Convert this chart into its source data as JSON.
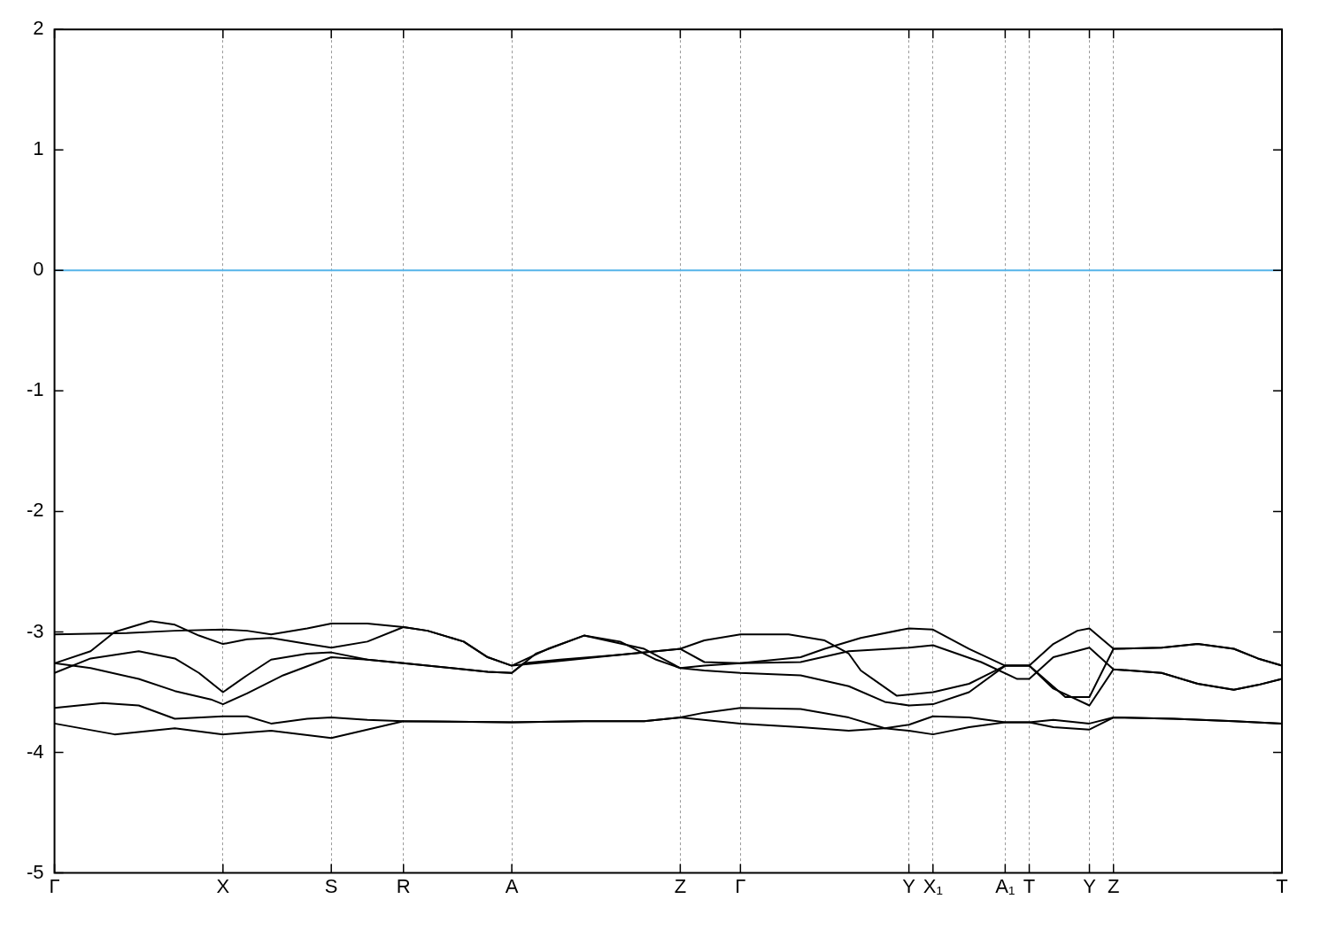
{
  "chart_data": {
    "type": "line",
    "grid": "x",
    "legend": false,
    "marker": "none",
    "categories": [
      "Γ",
      null,
      null,
      null,
      null,
      null,
      null,
      null,
      null,
      null,
      null,
      null,
      null,
      null,
      "X",
      null,
      null,
      null,
      null,
      null,
      null,
      null,
      null,
      "S",
      null,
      null,
      null,
      null,
      null,
      "R",
      null,
      null,
      null,
      null,
      null,
      null,
      null,
      null,
      "A",
      null,
      null,
      null,
      null,
      null,
      null,
      null,
      null,
      null,
      null,
      null,
      null,
      null,
      "Z",
      null,
      null,
      null,
      null,
      "Γ",
      null,
      null,
      null,
      null,
      null,
      null,
      null,
      null,
      null,
      null,
      null,
      null,
      null,
      "Y",
      null,
      "X₁",
      null,
      null,
      null,
      null,
      null,
      "A₁",
      null,
      "T",
      null,
      null,
      null,
      null,
      "Y",
      null,
      "Z",
      null,
      null,
      null,
      null,
      null,
      null,
      null,
      null,
      null,
      null,
      null,
      null,
      null,
      "T"
    ],
    "ylim": [
      -5,
      2
    ],
    "yticks": [
      -5,
      -4,
      -3,
      -2,
      -1,
      0,
      1,
      2
    ],
    "ref_lines": [
      {
        "axis": "y",
        "value": 0,
        "color": "#56b4e9"
      }
    ],
    "series": [
      {
        "color": "#000000",
        "values": [
          -3.02,
          null,
          null,
          null,
          null,
          null,
          -3.01,
          null,
          null,
          null,
          -2.99,
          null,
          null,
          null,
          -2.98,
          null,
          -2.99,
          null,
          -3.02,
          null,
          null,
          -2.97,
          null,
          -2.93,
          null,
          null,
          -2.93,
          null,
          null,
          -2.96,
          null,
          -2.99,
          null,
          null,
          -3.08,
          null,
          -3.21,
          null,
          -3.28,
          null,
          null,
          null,
          -3.24,
          null,
          null,
          null,
          null,
          -3.19,
          null,
          null,
          null,
          null,
          -3.14,
          null,
          -3.07,
          null,
          null,
          -3.02,
          null,
          null,
          null,
          -3.02,
          null,
          null,
          -3.07,
          null,
          -3.18,
          -3.32,
          null,
          null,
          -3.53,
          null,
          null,
          -3.5,
          null,
          null,
          -3.43,
          null,
          null,
          -3.28,
          null,
          -3.28,
          null,
          null,
          -3.54,
          null,
          -3.54,
          null,
          -3.14,
          null,
          null,
          null,
          -3.13,
          null,
          null,
          -3.1,
          null,
          null,
          -3.14,
          null,
          -3.22,
          null,
          -3.28
        ]
      },
      {
        "color": "#000000",
        "values": [
          -3.26,
          null,
          null,
          -3.16,
          null,
          -3.0,
          null,
          null,
          -2.91,
          null,
          -2.94,
          null,
          -3.03,
          null,
          -3.1,
          null,
          -3.06,
          null,
          -3.05,
          null,
          null,
          -3.1,
          null,
          -3.13,
          null,
          null,
          -3.08,
          null,
          null,
          -2.96,
          null,
          -2.99,
          null,
          null,
          -3.08,
          null,
          -3.21,
          null,
          -3.28,
          null,
          null,
          -3.14,
          null,
          null,
          -3.03,
          null,
          null,
          -3.08,
          null,
          null,
          -3.23,
          null,
          -3.3,
          null,
          -3.28,
          null,
          null,
          -3.26,
          null,
          null,
          null,
          null,
          -3.21,
          null,
          -3.14,
          null,
          null,
          -3.05,
          null,
          null,
          null,
          -2.97,
          null,
          -2.98,
          null,
          null,
          -3.14,
          null,
          null,
          -3.28,
          null,
          -3.28,
          null,
          -3.1,
          null,
          -2.99,
          -2.97,
          null,
          -3.14,
          null,
          null,
          null,
          -3.13,
          null,
          null,
          -3.1,
          null,
          null,
          -3.14,
          null,
          -3.22,
          null,
          -3.28
        ]
      },
      {
        "color": "#000000",
        "values": [
          -3.34,
          null,
          null,
          -3.22,
          null,
          null,
          null,
          -3.16,
          null,
          null,
          -3.22,
          null,
          -3.34,
          null,
          -3.5,
          null,
          -3.36,
          null,
          -3.23,
          null,
          null,
          -3.18,
          null,
          -3.17,
          null,
          null,
          -3.23,
          null,
          null,
          -3.26,
          null,
          null,
          null,
          -3.3,
          null,
          null,
          -3.33,
          null,
          -3.34,
          -3.26,
          null,
          null,
          -3.23,
          null,
          null,
          null,
          null,
          -3.19,
          null,
          null,
          -3.16,
          null,
          -3.14,
          null,
          -3.25,
          null,
          null,
          -3.26,
          null,
          null,
          null,
          null,
          -3.25,
          null,
          null,
          null,
          -3.16,
          null,
          null,
          null,
          null,
          -3.13,
          null,
          -3.11,
          null,
          null,
          null,
          -3.25,
          null,
          null,
          -3.39,
          -3.39,
          null,
          -3.21,
          null,
          null,
          -3.13,
          null,
          -3.31,
          null,
          null,
          null,
          -3.34,
          null,
          null,
          -3.43,
          null,
          null,
          -3.48,
          null,
          -3.44,
          null,
          -3.39
        ]
      },
      {
        "color": "#000000",
        "values": [
          -3.26,
          null,
          null,
          -3.3,
          null,
          null,
          null,
          -3.39,
          null,
          null,
          -3.49,
          null,
          null,
          -3.56,
          -3.6,
          null,
          -3.51,
          null,
          null,
          -3.36,
          null,
          null,
          null,
          -3.21,
          null,
          null,
          -3.23,
          null,
          null,
          -3.26,
          null,
          null,
          null,
          -3.3,
          null,
          null,
          -3.33,
          null,
          -3.34,
          null,
          -3.18,
          null,
          null,
          null,
          -3.03,
          null,
          null,
          null,
          null,
          -3.14,
          null,
          null,
          -3.3,
          null,
          -3.32,
          null,
          null,
          -3.34,
          null,
          null,
          null,
          null,
          -3.36,
          null,
          null,
          null,
          -3.45,
          null,
          null,
          -3.58,
          null,
          -3.61,
          null,
          -3.6,
          null,
          null,
          -3.5,
          null,
          null,
          -3.28,
          null,
          -3.28,
          null,
          -3.47,
          null,
          null,
          -3.61,
          null,
          -3.31,
          null,
          null,
          null,
          -3.34,
          null,
          null,
          -3.43,
          null,
          null,
          -3.48,
          null,
          -3.44,
          null,
          -3.39
        ]
      },
      {
        "color": "#000000",
        "values": [
          -3.63,
          null,
          null,
          null,
          -3.59,
          null,
          null,
          -3.61,
          null,
          null,
          -3.72,
          null,
          null,
          null,
          -3.7,
          null,
          -3.7,
          null,
          -3.76,
          null,
          null,
          -3.72,
          null,
          -3.71,
          null,
          null,
          -3.73,
          null,
          null,
          -3.74,
          null,
          null,
          null,
          null,
          null,
          null,
          null,
          null,
          -3.75,
          null,
          null,
          null,
          null,
          null,
          -3.74,
          null,
          null,
          null,
          null,
          -3.74,
          null,
          null,
          -3.71,
          null,
          -3.67,
          null,
          null,
          -3.63,
          null,
          null,
          null,
          null,
          -3.64,
          null,
          null,
          null,
          -3.71,
          null,
          null,
          -3.8,
          null,
          -3.82,
          null,
          -3.85,
          null,
          null,
          -3.79,
          null,
          null,
          -3.75,
          null,
          -3.75,
          null,
          -3.73,
          null,
          null,
          -3.76,
          null,
          -3.71,
          null,
          null,
          null,
          null,
          -3.72,
          null,
          null,
          null,
          null,
          -3.74,
          null,
          null,
          null,
          -3.76
        ]
      },
      {
        "color": "#000000",
        "values": [
          -3.76,
          null,
          null,
          null,
          null,
          -3.85,
          null,
          null,
          null,
          null,
          -3.8,
          null,
          null,
          null,
          -3.85,
          null,
          null,
          null,
          -3.82,
          null,
          null,
          null,
          null,
          -3.88,
          null,
          null,
          null,
          null,
          null,
          -3.74,
          null,
          null,
          null,
          null,
          null,
          null,
          null,
          null,
          -3.75,
          null,
          null,
          null,
          null,
          null,
          -3.74,
          null,
          null,
          null,
          null,
          -3.74,
          null,
          null,
          -3.71,
          null,
          null,
          -3.74,
          null,
          -3.76,
          null,
          null,
          null,
          null,
          -3.79,
          null,
          null,
          null,
          -3.82,
          null,
          null,
          -3.8,
          null,
          -3.77,
          null,
          -3.7,
          null,
          null,
          -3.71,
          null,
          null,
          -3.75,
          null,
          -3.75,
          null,
          -3.79,
          null,
          null,
          -3.81,
          null,
          -3.71,
          null,
          null,
          null,
          null,
          -3.72,
          null,
          null,
          null,
          null,
          -3.74,
          null,
          null,
          null,
          -3.76
        ]
      }
    ]
  }
}
